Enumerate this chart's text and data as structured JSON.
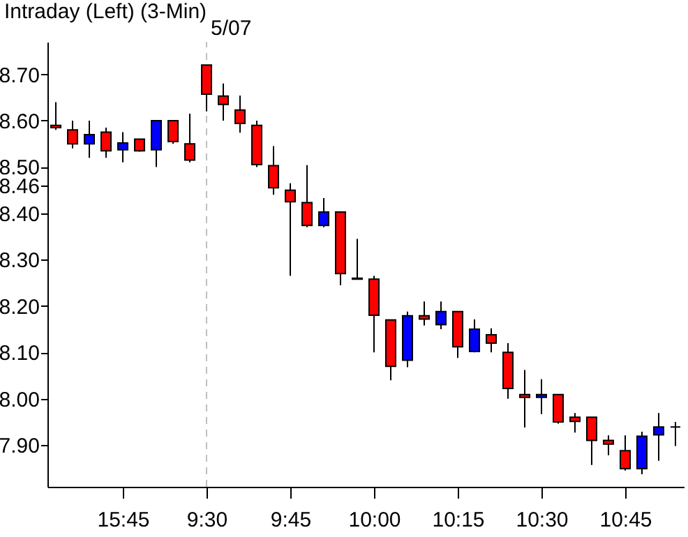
{
  "chart_data": {
    "type": "candlestick",
    "title": "Intraday      (Left)    (3-Min)",
    "categories": [
      null,
      null,
      null,
      null,
      "15:45",
      null,
      null,
      null,
      null,
      "9:30",
      null,
      null,
      null,
      null,
      "9:45",
      null,
      null,
      null,
      null,
      "10:00",
      null,
      null,
      null,
      null,
      "10:15",
      null,
      null,
      null,
      null,
      "10:30",
      null,
      null,
      null,
      null,
      "10:45",
      null,
      null,
      null
    ],
    "ohlc": [
      [
        8.59,
        8.64,
        8.58,
        8.585
      ],
      [
        8.58,
        8.6,
        8.54,
        8.55
      ],
      [
        8.55,
        8.6,
        8.52,
        8.57
      ],
      [
        8.575,
        8.585,
        8.52,
        8.535
      ],
      [
        8.537,
        8.575,
        8.51,
        8.552
      ],
      [
        8.56,
        8.56,
        8.533,
        8.535
      ],
      [
        8.537,
        8.6,
        8.5,
        8.6
      ],
      [
        8.6,
        8.6,
        8.55,
        8.555
      ],
      [
        8.55,
        8.615,
        8.51,
        8.515
      ],
      [
        8.72,
        8.72,
        8.62,
        8.657
      ],
      [
        8.653,
        8.68,
        8.6,
        8.635
      ],
      [
        8.623,
        8.654,
        8.574,
        8.594
      ],
      [
        8.59,
        8.6,
        8.5,
        8.505
      ],
      [
        8.503,
        8.545,
        8.44,
        8.455
      ],
      [
        8.45,
        8.465,
        8.265,
        8.425
      ],
      [
        8.423,
        8.504,
        8.37,
        8.374
      ],
      [
        8.374,
        8.433,
        8.37,
        8.403
      ],
      [
        8.403,
        8.403,
        8.245,
        8.27
      ],
      [
        8.26,
        8.345,
        8.258,
        8.258
      ],
      [
        8.258,
        8.265,
        8.1,
        8.18
      ],
      [
        8.17,
        8.17,
        8.04,
        8.07
      ],
      [
        8.083,
        8.188,
        8.068,
        8.179
      ],
      [
        8.179,
        8.21,
        8.158,
        8.172
      ],
      [
        8.16,
        8.21,
        8.15,
        8.188
      ],
      [
        8.188,
        8.188,
        8.088,
        8.112
      ],
      [
        8.102,
        8.171,
        8.1,
        8.15
      ],
      [
        8.138,
        8.152,
        8.1,
        8.12
      ],
      [
        8.1,
        8.12,
        8.0,
        8.022
      ],
      [
        8.009,
        8.062,
        7.938,
        8.003
      ],
      [
        8.003,
        8.042,
        7.967,
        8.009
      ],
      [
        8.009,
        8.009,
        7.946,
        7.95
      ],
      [
        7.96,
        7.969,
        7.927,
        7.951
      ],
      [
        7.96,
        7.96,
        7.857,
        7.91
      ],
      [
        7.91,
        7.921,
        7.878,
        7.902
      ],
      [
        7.888,
        7.921,
        7.845,
        7.849
      ],
      [
        7.849,
        7.929,
        7.837,
        7.919
      ],
      [
        7.922,
        7.969,
        7.866,
        7.939
      ],
      [
        7.939,
        7.95,
        7.898,
        7.939
      ]
    ],
    "colors": [
      "#ff0000",
      "#ff0000",
      "#0000ff",
      "#ff0000",
      "#0000ff",
      "#ff0000",
      "#0000ff",
      "#ff0000",
      "#ff0000",
      "#ff0000",
      "#ff0000",
      "#ff0000",
      "#ff0000",
      "#ff0000",
      "#ff0000",
      "#ff0000",
      "#0000ff",
      "#ff0000",
      "#ff0000",
      "#ff0000",
      "#ff0000",
      "#0000ff",
      "#ff0000",
      "#0000ff",
      "#ff0000",
      "#0000ff",
      "#ff0000",
      "#ff0000",
      "#ff0000",
      "#0000ff",
      "#ff0000",
      "#ff0000",
      "#ff0000",
      "#ff0000",
      "#ff0000",
      "#0000ff",
      "#0000ff",
      "#000000"
    ],
    "ylim": [
      7.81,
      8.77
    ],
    "yticks": [
      {
        "value": 7.9,
        "label": "7.90"
      },
      {
        "value": 8.0,
        "label": "8.00"
      },
      {
        "value": 8.1,
        "label": "8.10"
      },
      {
        "value": 8.2,
        "label": "8.20"
      },
      {
        "value": 8.3,
        "label": "8.30"
      },
      {
        "value": 8.4,
        "label": "8.40"
      },
      {
        "value": 8.46,
        "label": "8.46"
      },
      {
        "value": 8.5,
        "label": "8.50"
      },
      {
        "value": 8.6,
        "label": "8.60"
      },
      {
        "value": 8.7,
        "label": "8.70"
      }
    ],
    "ref_lines": [
      {
        "axis": "x",
        "value": "9:30",
        "label": "5/07",
        "color": "#c0c0c0",
        "line_style": "dashed"
      }
    ],
    "grid": false
  }
}
